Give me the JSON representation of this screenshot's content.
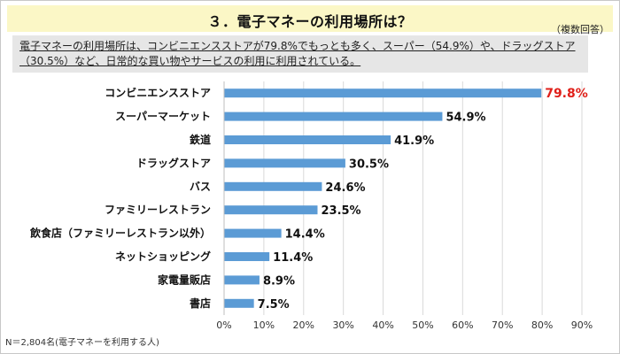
{
  "header": {
    "title": "３．電子マネーの利用場所は？",
    "note": "（複数回答）"
  },
  "summary": {
    "text": "電子マネーの利用場所は、コンビニエンスストアが79.8%でもっとも多く、スーパー（54.9%）や、ドラッグストア（30.5%）など、日常的な買い物やサービスの利用に利用されている。"
  },
  "footnote": "N＝2,804名(電子マネーを利用する人)",
  "colors": {
    "bar": "#5b9bd5",
    "highlight_label": "#e0201a",
    "grid": "#d9d9d9"
  },
  "chart_data": {
    "type": "bar",
    "orientation": "horizontal",
    "categories": [
      "コンビニエンスストア",
      "スーパーマーケット",
      "鉄道",
      "ドラッグストア",
      "バス",
      "ファミリーレストラン",
      "飲食店（ファミリーレストラン以外）",
      "ネットショッピング",
      "家電量販店",
      "書店"
    ],
    "values": [
      79.8,
      54.9,
      41.9,
      30.5,
      24.6,
      23.5,
      14.4,
      11.4,
      8.9,
      7.5
    ],
    "value_labels": [
      "79.8%",
      "54.9%",
      "41.9%",
      "30.5%",
      "24.6%",
      "23.5%",
      "14.4%",
      "11.4%",
      "8.9%",
      "7.5%"
    ],
    "xlim": [
      0,
      90
    ],
    "xticks": [
      "0%",
      "10%",
      "20%",
      "30%",
      "40%",
      "50%",
      "60%",
      "70%",
      "80%",
      "90%"
    ],
    "grid": "vertical",
    "highlight_index": 0
  }
}
